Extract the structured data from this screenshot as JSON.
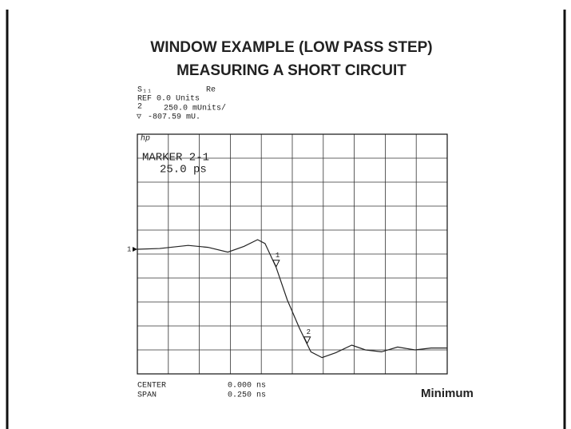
{
  "chart_data": {
    "type": "line",
    "title": "WINDOW EXAMPLE (LOW PASS STEP)",
    "subtitle": "MEASURING A SHORT CIRCUIT",
    "readout": {
      "parameter": "S₁₁",
      "format": "Re",
      "reference": "REF 0.0 Units",
      "channel": "2",
      "scale": "250.0 mUnits/",
      "marker_symbol": "▽",
      "marker_value": "-807.59 mU.",
      "logo": "hp",
      "marker_readout": "MARKER 2-1",
      "marker_delta": "25.0 ps",
      "ref_marker": "1",
      "center_label": "CENTER",
      "center": "0.000 ns",
      "span_label": "SPAN",
      "span": "0.250 ns",
      "window": "Minimum"
    },
    "reference_level": 0,
    "x": [
      -0.125,
      -0.107,
      -0.084,
      -0.068,
      -0.052,
      -0.039,
      -0.028,
      -0.022,
      -0.013,
      -0.004,
      0.006,
      0.015,
      0.024,
      0.035,
      0.048,
      0.059,
      0.072,
      0.085,
      0.099,
      0.112,
      0.125
    ],
    "series": [
      {
        "name": "S11",
        "color": "#222222",
        "values": [
          0,
          0.008,
          0.04,
          0.02,
          -0.03,
          0.03,
          0.1,
          0.06,
          -0.19,
          -0.53,
          -0.83,
          -1.07,
          -1.13,
          -1.08,
          -1.0,
          -1.05,
          -1.07,
          -1.02,
          -1.05,
          -1.03,
          -1.03
        ]
      }
    ],
    "markers": [
      {
        "label": "1",
        "x": -0.013
      },
      {
        "label": "2",
        "x": 0.012
      }
    ],
    "xlim": [
      -0.125,
      0.125
    ],
    "ylim": [
      -1.3,
      1.2
    ],
    "xticks": [
      -0.125,
      -0.1,
      -0.075,
      -0.05,
      -0.025,
      0,
      0.025,
      0.05,
      0.075,
      0.1,
      0.125
    ],
    "yticks": [
      -1.3,
      -1.05,
      -0.8,
      -0.55,
      -0.3,
      -0.05,
      0.2,
      0.45,
      0.7,
      0.95,
      1.2
    ],
    "grid": true
  }
}
